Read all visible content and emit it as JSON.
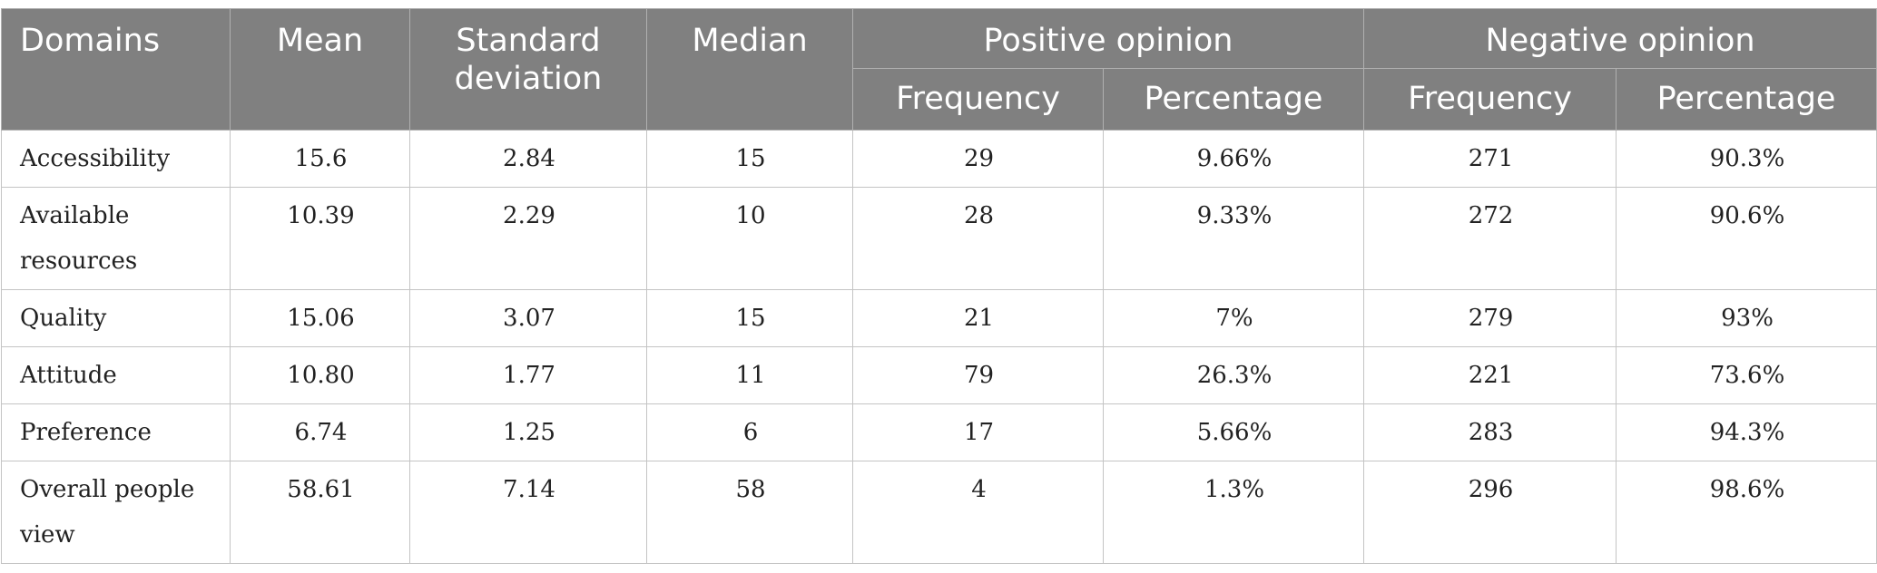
{
  "table": {
    "headers": {
      "domains": "Domains",
      "mean": "Mean",
      "standard_deviation": "Standard deviation",
      "median": "Median",
      "positive_opinion": "Positive opinion",
      "negative_opinion": "Negative opinion",
      "frequency": "Frequency",
      "percentage": "Percentage"
    },
    "rows": [
      {
        "domain": "Accessibility",
        "mean": "15.6",
        "sd": "2.84",
        "median": "15",
        "pos_freq": "29",
        "pos_pct": "9.66%",
        "neg_freq": "271",
        "neg_pct": "90.3%"
      },
      {
        "domain": "Available resources",
        "mean": "10.39",
        "sd": "2.29",
        "median": "10",
        "pos_freq": "28",
        "pos_pct": "9.33%",
        "neg_freq": "272",
        "neg_pct": "90.6%"
      },
      {
        "domain": "Quality",
        "mean": "15.06",
        "sd": "3.07",
        "median": "15",
        "pos_freq": "21",
        "pos_pct": "7%",
        "neg_freq": "279",
        "neg_pct": "93%"
      },
      {
        "domain": "Attitude",
        "mean": "10.80",
        "sd": "1.77",
        "median": "11",
        "pos_freq": "79",
        "pos_pct": "26.3%",
        "neg_freq": "221",
        "neg_pct": "73.6%"
      },
      {
        "domain": "Preference",
        "mean": "6.74",
        "sd": "1.25",
        "median": "6",
        "pos_freq": "17",
        "pos_pct": "5.66%",
        "neg_freq": "283",
        "neg_pct": "94.3%"
      },
      {
        "domain": "Overall people view",
        "mean": "58.61",
        "sd": "7.14",
        "median": "58",
        "pos_freq": "4",
        "pos_pct": "1.3%",
        "neg_freq": "296",
        "neg_pct": "98.6%"
      }
    ]
  }
}
